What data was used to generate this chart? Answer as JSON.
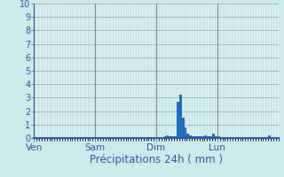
{
  "xlabel": "Précipitations 24h ( mm )",
  "background_color": "#cceaea",
  "plot_bg_color": "#d8f0f0",
  "bar_color": "#1e6ebb",
  "grid_color_major": "#a0bcbc",
  "grid_color_minor": "#c0d8d8",
  "axis_color": "#3355aa",
  "text_color": "#3355aa",
  "tick_label_color": "#3355aa",
  "ylim": [
    0,
    10
  ],
  "xlim": [
    0,
    96
  ],
  "yticks": [
    0,
    1,
    2,
    3,
    4,
    5,
    6,
    7,
    8,
    9,
    10
  ],
  "day_labels": [
    "Ven",
    "Sam",
    "Dim",
    "Lun"
  ],
  "day_positions": [
    0,
    24,
    48,
    72
  ],
  "values": [
    0,
    0,
    0,
    0,
    0,
    0,
    0,
    0,
    0,
    0,
    0,
    0,
    0,
    0,
    0,
    0,
    0,
    0,
    0,
    0,
    0,
    0,
    0,
    0,
    0,
    0,
    0,
    0,
    0,
    0,
    0,
    0,
    0,
    0,
    0,
    0,
    0,
    0,
    0,
    0,
    0,
    0,
    0,
    0,
    0,
    0,
    0,
    0,
    0,
    0,
    0,
    0.15,
    0.2,
    0.15,
    0.1,
    0.15,
    2.7,
    3.2,
    1.5,
    0.8,
    0.3,
    0.2,
    0.15,
    0.1,
    0.1,
    0.1,
    0.15,
    0.2,
    0.1,
    0.15,
    0.3,
    0.15,
    0.1,
    0,
    0,
    0,
    0,
    0,
    0,
    0,
    0,
    0,
    0,
    0,
    0,
    0,
    0,
    0,
    0,
    0,
    0,
    0,
    0.2,
    0,
    0,
    0
  ],
  "xlabel_fontsize": 8.5,
  "ytick_fontsize": 7,
  "xtick_fontsize": 7.5
}
